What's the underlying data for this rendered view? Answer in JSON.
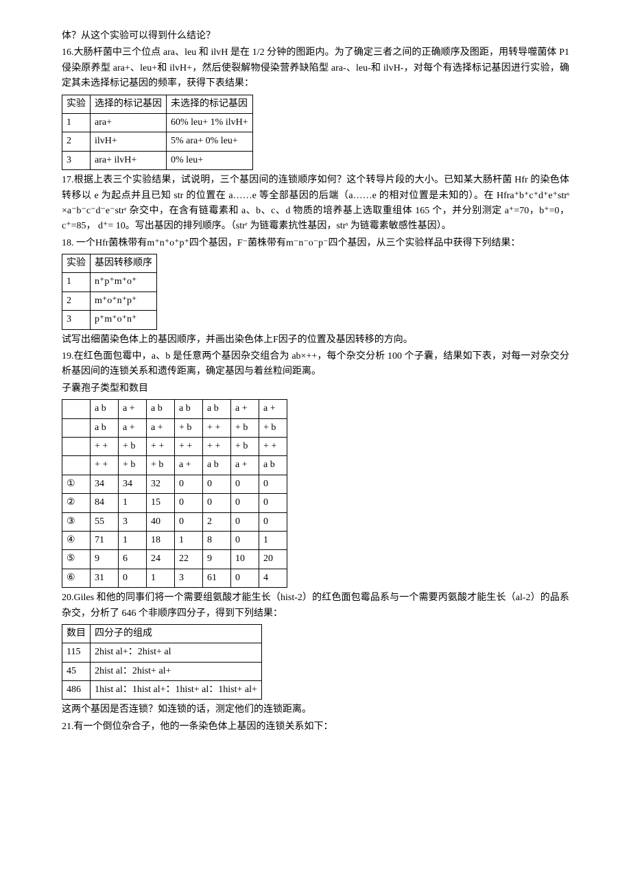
{
  "text": {
    "p1": "体？从这个实验可以得到什么结论？",
    "p2": "16.大肠杆菌中三个位点 ara、leu 和 ilvH 是在 1/2 分钟的图距内。为了确定三者之间的正确顺序及图距，用转导噬菌体 P1 侵染原养型 ara+、leu+和 ilvH+，然后使裂解物侵染营养缺陷型 ara-、leu-和 ilvH-，对每个有选择标记基因进行实验，确定其未选择标记基因的频率，获得下表结果：",
    "p3": "17.根据上表三个实验结果，试说明，三个基因间的连锁顺序如何？这个转导片段的大小。已知某大肠杆菌 Hfr 的染色体转移以 e 为起点并且已知 str 的位置在 a……e 等全部基因的后端（a……e 的相对位置是未知的）。在 Hfra⁺b⁺c⁺d⁺e⁺strˢ ×a⁻b⁻c⁻d⁻e⁻strʳ 杂交中，在含有链霉素和 a、b、c、d 物质的培养基上选取重组体 165 个，并分别测定 a⁺=70，b⁺=0，c⁺=85， d⁺= 10。写出基因的排列顺序。（strʳ 为链霉素抗性基因，strˢ 为链霉素敏感性基因）。",
    "p4": "18. 一个Hfr菌株带有m⁺n⁺o⁺p⁺四个基因，F⁻菌株带有m⁻n⁻o⁻p⁻四个基因，从三个实验样品中获得下列结果：",
    "p5": "试写出细菌染色体上的基因顺序，并画出染色体上F因子的位置及基因转移的方向。",
    "p6": "19.在红色面包霉中，a、b 是任意两个基因杂交组合为 ab×++，每个杂交分析 100 个子囊，结果如下表，对每一对杂交分析基因间的连锁关系和遗传距离，确定基因与着丝粒间距离。",
    "p7": "子囊孢子类型和数目",
    "p8": "20.Giles 和他的同事们将一个需要组氨酸才能生长（hist-2）的红色面包霉品系与一个需要丙氨酸才能生长（al-2）的品系杂交，分析了 646 个非顺序四分子，得到下列结果：",
    "p9": "这两个基因是否连锁？如连锁的话，测定他们的连锁距离。",
    "p10": "21.有一个倒位杂合子，他的一条染色体上基因的连锁关系如下："
  },
  "table1": {
    "headers": [
      "实验",
      "选择的标记基因",
      "未选择的标记基因"
    ],
    "rows": [
      [
        "1",
        "ara+",
        "60% leu+ 1% ilvH+"
      ],
      [
        "2",
        "ilvH+",
        "5% ara+ 0% leu+"
      ],
      [
        "3",
        "ara+ ilvH+",
        "0% leu+"
      ]
    ]
  },
  "table2": {
    "headers": [
      "实验",
      "基因转移顺序"
    ],
    "rows": [
      [
        "1",
        "n⁺p⁺m⁺o⁺"
      ],
      [
        "2",
        "m⁺o⁺n⁺p⁺"
      ],
      [
        "3",
        "p⁺m⁺o⁺n⁺"
      ]
    ]
  },
  "table3": {
    "header_rows": [
      [
        "",
        "a b",
        "a +",
        "a b",
        "a b",
        "a b",
        "a +",
        "a +"
      ],
      [
        "",
        "a b",
        "a +",
        "a +",
        "+ b",
        "+ +",
        "+ b",
        "+ b"
      ],
      [
        "",
        "+ +",
        "+ b",
        "+ +",
        "+ +",
        "+ +",
        "+ b",
        "+ +"
      ],
      [
        "",
        "+ +",
        "+ b",
        "+ b",
        "a +",
        "a b",
        "a +",
        "a b"
      ]
    ],
    "data_rows": [
      [
        "①",
        "34",
        "34",
        "32",
        "0",
        "0",
        "0",
        "0"
      ],
      [
        "②",
        "84",
        "1",
        "15",
        "0",
        "0",
        "0",
        "0"
      ],
      [
        "③",
        "55",
        "3",
        "40",
        "0",
        "2",
        "0",
        "0"
      ],
      [
        "④",
        "71",
        "1",
        "18",
        "1",
        "8",
        "0",
        "1"
      ],
      [
        "⑤",
        "9",
        "6",
        "24",
        "22",
        "9",
        "10",
        "20"
      ],
      [
        "⑥",
        "31",
        "0",
        "1",
        "3",
        "61",
        "0",
        "4"
      ]
    ]
  },
  "table4": {
    "headers": [
      "数目",
      "四分子的组成"
    ],
    "rows": [
      [
        "115",
        "2hist al+：2hist+ al"
      ],
      [
        "45",
        "2hist al：2hist+ al+"
      ],
      [
        "486",
        "1hist al：1hist al+：1hist+ al：1hist+ al+"
      ]
    ]
  }
}
